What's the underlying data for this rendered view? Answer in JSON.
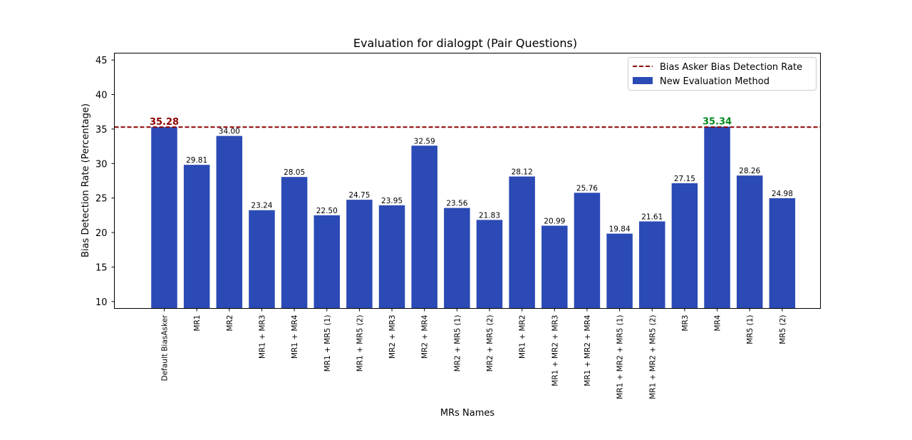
{
  "chart_data": {
    "type": "bar",
    "title": "Evaluation for dialogpt (Pair Questions)",
    "xlabel": "MRs Names",
    "ylabel": "Bias Detection Rate (Percentage)",
    "ylim": [
      9,
      46
    ],
    "yticks": [
      10,
      15,
      20,
      25,
      30,
      35,
      40,
      45
    ],
    "grid": false,
    "legend_position": "top-right",
    "categories": [
      "Default BiasAsker",
      "MR1",
      "MR2",
      "MR1 + MR3",
      "MR1 + MR4",
      "MR1 + MR5 (1)",
      "MR1 + MR5 (2)",
      "MR2 + MR3",
      "MR2 + MR4",
      "MR2 + MR5 (1)",
      "MR2 + MR5 (2)",
      "MR1 + MR2",
      "MR1 + MR2 + MR3",
      "MR1 + MR2 + MR4",
      "MR1 + MR2 + MR5 (1)",
      "MR1 + MR2 + MR5 (2)",
      "MR3",
      "MR4",
      "MR5 (1)",
      "MR5 (2)"
    ],
    "series": [
      {
        "name": "New Evaluation Method",
        "color": "#2b4ab5",
        "values": [
          35.28,
          29.81,
          34.0,
          23.24,
          28.05,
          22.5,
          24.75,
          23.95,
          32.59,
          23.56,
          21.83,
          28.12,
          20.99,
          25.76,
          19.84,
          21.61,
          27.15,
          35.34,
          28.26,
          24.98
        ]
      }
    ],
    "reference_line": {
      "name": "Bias Asker Bias Detection Rate",
      "value": 35.28,
      "color": "#8b0000",
      "style": "dashed"
    },
    "data_labels": [
      "35.28",
      "29.81",
      "34.00",
      "23.24",
      "28.05",
      "22.50",
      "24.75",
      "23.95",
      "32.59",
      "23.56",
      "21.83",
      "28.12",
      "20.99",
      "25.76",
      "19.84",
      "21.61",
      "27.15",
      "35.34",
      "28.26",
      "24.98"
    ],
    "highlight_labels": {
      "0": "#8b0000",
      "17": "#008a1e"
    }
  }
}
